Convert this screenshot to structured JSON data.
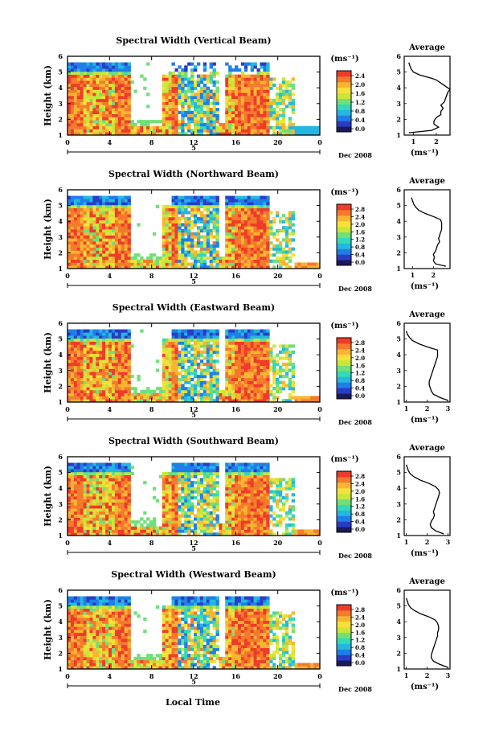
{
  "figure": {
    "xlabel": "Local Time",
    "date_label": "Dec 2008",
    "day_label": "5",
    "ylabel": "Height (km)",
    "colorbar_unit": "(ms⁻¹)",
    "avg_title": "Average",
    "avg_xunit": "(ms⁻¹)"
  },
  "colors": {
    "scale": [
      "#1a1a5a",
      "#2b3cc4",
      "#1f7fe8",
      "#25b7e0",
      "#35d8b8",
      "#6fe07a",
      "#c9e63a",
      "#f6e13a",
      "#f9b532",
      "#f47a2c",
      "#ee3b2b"
    ]
  },
  "chart_data": [
    {
      "type": "heatmap",
      "title": "Spectral Width (Vertical Beam)",
      "x_ticks": [
        "0",
        "4",
        "8",
        "12",
        "16",
        "20",
        "0"
      ],
      "xlim": [
        0,
        24
      ],
      "y_ticks": [
        "1",
        "2",
        "3",
        "4",
        "5",
        "6"
      ],
      "ylim": [
        1,
        6
      ],
      "colorbar_ticks": [
        "2.4",
        "2.0",
        "1.6",
        "1.2",
        "0.8",
        "0.4",
        "0.0"
      ],
      "colorbar_range": [
        0.0,
        2.8
      ],
      "average": {
        "x_ticks": [
          "1",
          "2"
        ],
        "xlim": [
          0.6,
          2.6
        ],
        "ylim": [
          1,
          6
        ],
        "profile_h": [
          1.15,
          1.3,
          1.5,
          1.7,
          1.9,
          2.1,
          2.3,
          2.5,
          2.7,
          2.9,
          3.1,
          3.3,
          3.5,
          3.7,
          3.9,
          4.1,
          4.3,
          4.5,
          4.6,
          4.8,
          5.0,
          5.2,
          5.4,
          5.6
        ],
        "profile_v": [
          0.8,
          1.8,
          2.1,
          1.9,
          1.9,
          2.0,
          2.2,
          2.2,
          2.3,
          2.2,
          2.35,
          2.4,
          2.45,
          2.5,
          2.6,
          2.4,
          2.2,
          2.0,
          1.8,
          1.3,
          1.0,
          0.9,
          0.85,
          0.8
        ]
      }
    },
    {
      "type": "heatmap",
      "title": "Spectral Width (Northward Beam)",
      "x_ticks": [
        "0",
        "4",
        "8",
        "12",
        "16",
        "20",
        "0"
      ],
      "xlim": [
        0,
        24
      ],
      "y_ticks": [
        "1",
        "2",
        "3",
        "4",
        "5",
        "6"
      ],
      "ylim": [
        1,
        6
      ],
      "colorbar_ticks": [
        "2.8",
        "2.4",
        "2.0",
        "1.6",
        "1.2",
        "0.8",
        "0.4",
        "0.0"
      ],
      "colorbar_range": [
        0.0,
        3.0
      ],
      "average": {
        "x_ticks": [
          "1",
          "2"
        ],
        "xlim": [
          0.6,
          2.8
        ],
        "ylim": [
          1,
          6
        ],
        "profile_h": [
          1.15,
          1.3,
          1.5,
          1.7,
          1.9,
          2.1,
          2.3,
          2.5,
          2.7,
          2.9,
          3.1,
          3.3,
          3.5,
          3.7,
          3.9,
          4.1,
          4.3,
          4.5,
          4.7,
          4.9,
          5.1,
          5.3,
          5.5
        ],
        "profile_v": [
          2.6,
          2.1,
          2.0,
          2.05,
          2.0,
          2.1,
          2.15,
          2.2,
          2.3,
          2.25,
          2.3,
          2.35,
          2.4,
          2.4,
          2.4,
          2.35,
          2.0,
          1.6,
          1.3,
          1.15,
          1.05,
          1.0,
          0.95
        ]
      }
    },
    {
      "type": "heatmap",
      "title": "Spectral Width (Eastward Beam)",
      "x_ticks": [
        "0",
        "4",
        "8",
        "12",
        "16",
        "20",
        "0"
      ],
      "xlim": [
        0,
        24
      ],
      "y_ticks": [
        "1",
        "2",
        "3",
        "4",
        "5",
        "6"
      ],
      "ylim": [
        1,
        6
      ],
      "colorbar_ticks": [
        "2.8",
        "2.4",
        "2.0",
        "1.6",
        "1.2",
        "0.8",
        "0.4",
        "0.0"
      ],
      "colorbar_range": [
        0.0,
        3.0
      ],
      "average": {
        "x_ticks": [
          "1",
          "2",
          "3"
        ],
        "xlim": [
          0.9,
          3.1
        ],
        "ylim": [
          1,
          6
        ],
        "profile_h": [
          1.1,
          1.3,
          1.5,
          1.7,
          1.9,
          2.1,
          2.3,
          2.5,
          2.7,
          2.9,
          3.1,
          3.3,
          3.5,
          3.7,
          3.9,
          4.1,
          4.3,
          4.5,
          4.7,
          4.9,
          5.1,
          5.3,
          5.5
        ],
        "profile_v": [
          3.0,
          2.6,
          2.3,
          2.2,
          2.15,
          2.1,
          2.1,
          2.15,
          2.2,
          2.25,
          2.3,
          2.35,
          2.4,
          2.45,
          2.5,
          2.5,
          2.5,
          2.0,
          1.6,
          1.3,
          1.15,
          1.05,
          1.0
        ]
      }
    },
    {
      "type": "heatmap",
      "title": "Spectral Width (Southward Beam)",
      "x_ticks": [
        "0",
        "4",
        "8",
        "12",
        "16",
        "20",
        "0"
      ],
      "xlim": [
        0,
        24
      ],
      "y_ticks": [
        "1",
        "2",
        "3",
        "4",
        "5",
        "6"
      ],
      "ylim": [
        1,
        6
      ],
      "colorbar_ticks": [
        "2.8",
        "2.4",
        "2.0",
        "1.6",
        "1.2",
        "0.8",
        "0.4",
        "0.0"
      ],
      "colorbar_range": [
        0.0,
        3.0
      ],
      "average": {
        "x_ticks": [
          "1",
          "2",
          "3"
        ],
        "xlim": [
          0.9,
          3.1
        ],
        "ylim": [
          1,
          6
        ],
        "profile_h": [
          1.1,
          1.3,
          1.5,
          1.7,
          1.9,
          2.1,
          2.3,
          2.5,
          2.7,
          2.9,
          3.1,
          3.3,
          3.5,
          3.7,
          3.9,
          4.1,
          4.3,
          4.5,
          4.7,
          4.9,
          5.1,
          5.3,
          5.5
        ],
        "profile_v": [
          2.8,
          2.4,
          2.2,
          2.15,
          2.2,
          2.3,
          2.35,
          2.3,
          2.35,
          2.4,
          2.45,
          2.5,
          2.55,
          2.6,
          2.55,
          2.4,
          2.1,
          1.7,
          1.4,
          1.2,
          1.1,
          1.05,
          1.0
        ]
      }
    },
    {
      "type": "heatmap",
      "title": "Spectral Width (Westward Beam)",
      "x_ticks": [
        "0",
        "4",
        "8",
        "12",
        "16",
        "20",
        "0"
      ],
      "xlim": [
        0,
        24
      ],
      "y_ticks": [
        "1",
        "2",
        "3",
        "4",
        "5",
        "6"
      ],
      "ylim": [
        1,
        6
      ],
      "colorbar_ticks": [
        "2.8",
        "2.4",
        "2.0",
        "1.6",
        "1.2",
        "0.8",
        "0.4",
        "0.0"
      ],
      "colorbar_range": [
        0.0,
        3.0
      ],
      "average": {
        "x_ticks": [
          "1",
          "2",
          "3"
        ],
        "xlim": [
          0.9,
          3.1
        ],
        "ylim": [
          1,
          6
        ],
        "profile_h": [
          1.1,
          1.3,
          1.5,
          1.7,
          1.9,
          2.1,
          2.3,
          2.5,
          2.7,
          2.9,
          3.1,
          3.3,
          3.5,
          3.7,
          3.9,
          4.1,
          4.3,
          4.5,
          4.7,
          4.9,
          5.1,
          5.3,
          5.5
        ],
        "profile_v": [
          3.0,
          2.6,
          2.3,
          2.2,
          2.2,
          2.25,
          2.3,
          2.35,
          2.4,
          2.45,
          2.5,
          2.5,
          2.55,
          2.55,
          2.5,
          2.4,
          2.1,
          1.7,
          1.4,
          1.2,
          1.1,
          1.05,
          1.0
        ]
      }
    }
  ]
}
